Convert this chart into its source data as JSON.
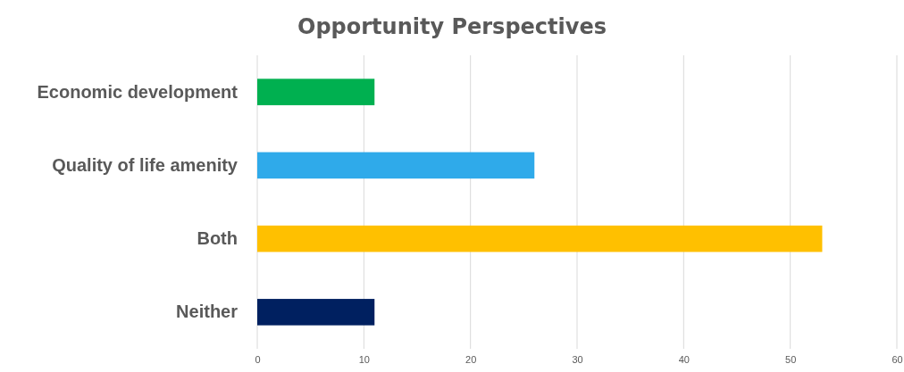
{
  "chart_data": {
    "type": "bar",
    "title": "Opportunity Perspectives",
    "orientation": "horizontal",
    "categories": [
      "Economic development",
      "Quality of life amenity",
      "Both",
      "Neither"
    ],
    "values": [
      11,
      26,
      53,
      11
    ],
    "colors": [
      "#00b050",
      "#2faaea",
      "#ffc000",
      "#002060"
    ],
    "xlim": [
      0,
      60
    ],
    "xticks": [
      0,
      10,
      20,
      30,
      40,
      50,
      60
    ],
    "grid": "x"
  }
}
